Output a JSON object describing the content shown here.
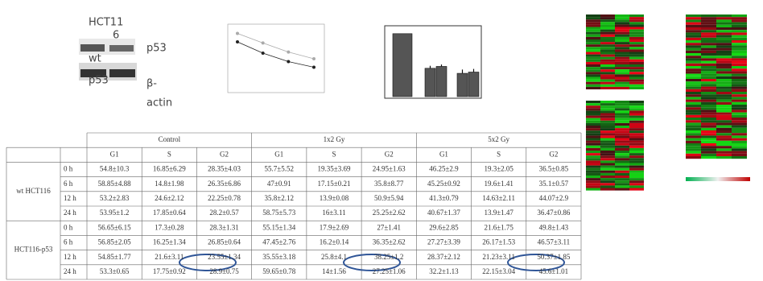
{
  "blot": {
    "labels": [
      "HCT11",
      "6",
      "wt",
      "p53",
      "p53",
      "β-",
      "actin"
    ]
  },
  "line_panel": {
    "ylim": [
      0,
      100
    ],
    "series": [
      {
        "color": "#aaaaaa",
        "values": [
          95,
          78,
          62,
          50
        ]
      },
      {
        "color": "#222222",
        "values": [
          80,
          60,
          45,
          35
        ]
      }
    ]
  },
  "bar_panel": {
    "ylim": [
      0,
      110
    ],
    "values": [
      100,
      45,
      48,
      37,
      39
    ],
    "errors": [
      0,
      4,
      3,
      6,
      5
    ],
    "color": "#555555"
  },
  "table": {
    "groups": [
      "Control",
      "1x2 Gy",
      "5x2 Gy"
    ],
    "phases": [
      "G1",
      "S",
      "G2",
      "G1",
      "S",
      "G2",
      "G1",
      "S",
      "G2"
    ],
    "row_groups": [
      {
        "name": "wt HCT116",
        "rows": [
          {
            "time": "0 h",
            "cells": [
              "54.8±10.3",
              "16.85±6.29",
              "28.35±4.03",
              "55.7±5.52",
              "19.35±3.69",
              "24.95±1.63",
              "46.25±2.9",
              "19.3±2.05",
              "36.5±0.85"
            ]
          },
          {
            "time": "6 h",
            "cells": [
              "58.85±4.88",
              "14.8±1.98",
              "26.35±6.86",
              "47±0.91",
              "17.15±0.21",
              "35.8±8.77",
              "45.25±0.92",
              "19.6±1.41",
              "35.1±0.57"
            ]
          },
          {
            "time": "12 h",
            "cells": [
              "53.2±2.83",
              "24.6±2.12",
              "22.25±0.78",
              "35.8±2.12",
              "13.9±0.08",
              "50.9±5.94",
              "41.3±0.79",
              "14.63±2.11",
              "44.07±2.9"
            ]
          },
          {
            "time": "24 h",
            "cells": [
              "53.95±1.2",
              "17.85±0.64",
              "28.2±0.57",
              "58.75±5.73",
              "16±3.11",
              "25.25±2.62",
              "40.67±1.37",
              "13.9±1.47",
              "36.47±0.86"
            ]
          }
        ]
      },
      {
        "name": "HCT116-p53",
        "rows": [
          {
            "time": "0 h",
            "cells": [
              "56.65±6.15",
              "17.3±0.28",
              "28.3±1.31",
              "55.15±1.34",
              "17.9±2.69",
              "27±1.41",
              "29.6±2.85",
              "21.6±1.75",
              "49.8±1.43"
            ]
          },
          {
            "time": "6 h",
            "cells": [
              "56.85±2.05",
              "16.25±1.34",
              "26.85±0.64",
              "47.45±2.76",
              "16.2±0.14",
              "36.35±2.62",
              "27.27±3.39",
              "26.17±1.53",
              "46.57±3.11"
            ]
          },
          {
            "time": "12 h",
            "cells": [
              "54.85±1.77",
              "21.6±3.11",
              "23.55±1.34",
              "35.55±3.18",
              "25.8±4.1",
              "38.25±1.2",
              "28.37±2.12",
              "21.23±3.11",
              "50.37±1.85"
            ]
          },
          {
            "time": "24 h",
            "cells": [
              "53.3±0.65",
              "17.75±0.92",
              "28.9±0.75",
              "59.65±0.78",
              "14±1.56",
              "27.25±1.06",
              "32.2±1.13",
              "22.15±3.04",
              "45.6±1.01"
            ]
          }
        ]
      }
    ]
  }
}
